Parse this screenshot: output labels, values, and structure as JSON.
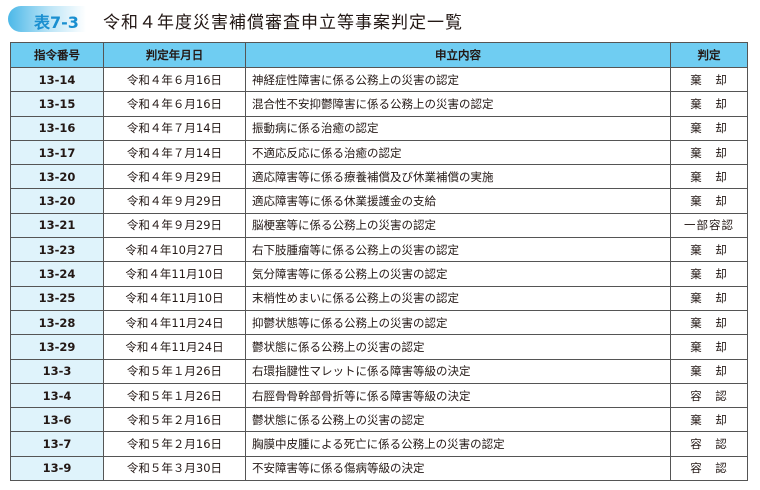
{
  "badge": "表7-3",
  "title": "令和４年度災害補償審査申立等事案判定一覧",
  "headers": [
    "指令番号",
    "判定年月日",
    "申立内容",
    "判定"
  ],
  "rows": [
    [
      "13-14",
      "令和４年６月16日",
      "神経症性障害に係る公務上の災害の認定",
      "棄　却"
    ],
    [
      "13-15",
      "令和４年６月16日",
      "混合性不安抑鬱障害に係る公務上の災害の認定",
      "棄　却"
    ],
    [
      "13-16",
      "令和４年７月14日",
      "振動病に係る治癒の認定",
      "棄　却"
    ],
    [
      "13-17",
      "令和４年７月14日",
      "不適応反応に係る治癒の認定",
      "棄　却"
    ],
    [
      "13-20",
      "令和４年９月29日",
      "適応障害等に係る療養補償及び休業補償の実施",
      "棄　却"
    ],
    [
      "13-20",
      "令和４年９月29日",
      "適応障害等に係る休業援護金の支給",
      "棄　却"
    ],
    [
      "13-21",
      "令和４年９月29日",
      "脳梗塞等に係る公務上の災害の認定",
      "一部容認"
    ],
    [
      "13-23",
      "令和４年10月27日",
      "右下肢腫瘤等に係る公務上の災害の認定",
      "棄　却"
    ],
    [
      "13-24",
      "令和４年11月10日",
      "気分障害等に係る公務上の災害の認定",
      "棄　却"
    ],
    [
      "13-25",
      "令和４年11月10日",
      "末梢性めまいに係る公務上の災害の認定",
      "棄　却"
    ],
    [
      "13-28",
      "令和４年11月24日",
      "抑鬱状態等に係る公務上の災害の認定",
      "棄　却"
    ],
    [
      "13-29",
      "令和４年11月24日",
      "鬱状態に係る公務上の災害の認定",
      "棄　却"
    ],
    [
      "13-3",
      "令和５年１月26日",
      "右環指腱性マレットに係る障害等級の決定",
      "棄　却"
    ],
    [
      "13-4",
      "令和５年１月26日",
      "右脛骨骨幹部骨折等に係る障害等級の決定",
      "容　認"
    ],
    [
      "13-6",
      "令和５年２月16日",
      "鬱状態に係る公務上の災害の認定",
      "棄　却"
    ],
    [
      "13-7",
      "令和５年２月16日",
      "胸膜中皮腫による死亡に係る公務上の災害の認定",
      "容　認"
    ],
    [
      "13-9",
      "令和５年３月30日",
      "不安障害等に係る傷病等級の決定",
      "容　認"
    ]
  ]
}
